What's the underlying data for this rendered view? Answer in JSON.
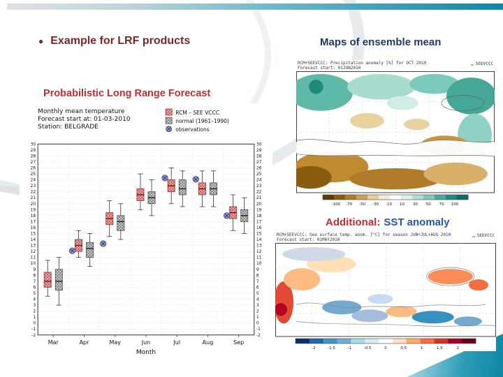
{
  "slide": {
    "bullet": "●",
    "title": "Example for LRF products",
    "maps_heading": "Maps of ensemble mean",
    "plrf_heading": "Probabilistic Long Range Forecast",
    "sst_heading_red": "Additional:",
    "sst_heading_blue": "SST anomaly"
  },
  "colors": {
    "title_maroon": "#7d2626",
    "heading_navy": "#1f3a66",
    "heading_red": "#c03030",
    "heading_blue": "#2a52b0",
    "accent_teal": "#0f86a4",
    "box_red_fill": "#f0b9b9",
    "box_red_edge": "#aa3333",
    "box_gray_fill": "#d9d9d9",
    "box_gray_edge": "#555555",
    "obs_blue": "#8f99d6"
  },
  "chart_data": {
    "type": "boxplot",
    "header_lines": [
      "Monthly mean temperature",
      "Forecast start at: 01-03-2010",
      "Station: BELGRADE"
    ],
    "legend": [
      {
        "label": "RCM – SEE VCCC",
        "swatch": "box-red",
        "color": "#f0b9b9"
      },
      {
        "label": "normal (1961–1990)",
        "swatch": "box-gray",
        "color": "#d9d9d9"
      },
      {
        "label": "observations",
        "swatch": "circle-x",
        "color": "#8f99d6"
      }
    ],
    "xlabel": "Month",
    "categories": [
      "Mar",
      "Apr",
      "May",
      "Jun",
      "Jul",
      "Aug",
      "Sep"
    ],
    "ylim": [
      -2,
      30
    ],
    "ytick_step": 1,
    "series": [
      {
        "name": "RCM – SEE VCCC",
        "boxes": [
          {
            "low": 4.5,
            "q1": 6.0,
            "med": 7.0,
            "q3": 8.5,
            "high": 10.5
          },
          {
            "low": 11.0,
            "q1": 12.0,
            "med": 13.0,
            "q3": 14.0,
            "high": 15.5
          },
          {
            "low": 14.5,
            "q1": 16.5,
            "med": 17.5,
            "q3": 18.5,
            "high": 20.5
          },
          {
            "low": 19.0,
            "q1": 20.5,
            "med": 21.5,
            "q3": 22.5,
            "high": 25.0
          },
          {
            "low": 20.0,
            "q1": 22.0,
            "med": 23.0,
            "q3": 24.0,
            "high": 26.0
          },
          {
            "low": 19.5,
            "q1": 21.5,
            "med": 22.5,
            "q3": 23.5,
            "high": 25.5
          },
          {
            "low": 15.5,
            "q1": 17.5,
            "med": 18.5,
            "q3": 19.5,
            "high": 21.5
          }
        ]
      },
      {
        "name": "normal (1961–1990)",
        "boxes": [
          {
            "low": 3.0,
            "q1": 5.5,
            "med": 7.0,
            "q3": 9.0,
            "high": 11.0
          },
          {
            "low": 9.5,
            "q1": 11.0,
            "med": 12.5,
            "q3": 13.5,
            "high": 15.0
          },
          {
            "low": 14.0,
            "q1": 15.5,
            "med": 17.0,
            "q3": 18.0,
            "high": 20.0
          },
          {
            "low": 18.0,
            "q1": 20.0,
            "med": 21.0,
            "q3": 22.0,
            "high": 24.0
          },
          {
            "low": 19.5,
            "q1": 21.5,
            "med": 22.5,
            "q3": 24.0,
            "high": 25.5
          },
          {
            "low": 19.5,
            "q1": 21.5,
            "med": 22.5,
            "q3": 23.5,
            "high": 25.5
          },
          {
            "low": 15.0,
            "q1": 17.0,
            "med": 18.0,
            "q3": 19.0,
            "high": 21.0
          }
        ]
      },
      {
        "name": "observations",
        "values": [
          null,
          12.1,
          13.3,
          null,
          24.3,
          24.1,
          18.0
        ]
      }
    ]
  },
  "maps": {
    "precip": {
      "header_line1": "RCM+SEEVCCC: Precipitation anomaly [%] for OCT 2010",
      "header_line2": "Forecast start: 01JUN2010",
      "logo_text": "SEEVCCC",
      "colorbar_labels": [
        "-100",
        "-70",
        "-50",
        "-30",
        "-10",
        "10",
        "30",
        "50",
        "70",
        "100"
      ],
      "colorbar_colors": [
        "#5e3a06",
        "#8a5a10",
        "#b07b2a",
        "#cfa050",
        "#e8cf96",
        "#f7ecd2",
        "#ffffff",
        "#ddefe9",
        "#b2ded5",
        "#7fc8bb",
        "#4aab9c",
        "#23897c",
        "#0f6b61"
      ]
    },
    "sst": {
      "header_line1": "RCM+SEEVCCC: Sea surface temp. anom. [°C] for season JUN+JUL+AUG 2010",
      "header_line2": "Forecast start: 01MAY2010",
      "logo_text": "SEEVCCC",
      "colorbar_labels": [
        "-2",
        "-1.5",
        "-1",
        "-0.5",
        "0",
        "0.5",
        "1",
        "1.5",
        "2"
      ],
      "colorbar_colors": [
        "#08306b",
        "#2166ac",
        "#4393c3",
        "#74add1",
        "#abd9e9",
        "#d9ecf2",
        "#ffffff",
        "#fee0c8",
        "#fdae61",
        "#f46d43",
        "#d73027",
        "#a50026",
        "#67001f"
      ]
    }
  }
}
